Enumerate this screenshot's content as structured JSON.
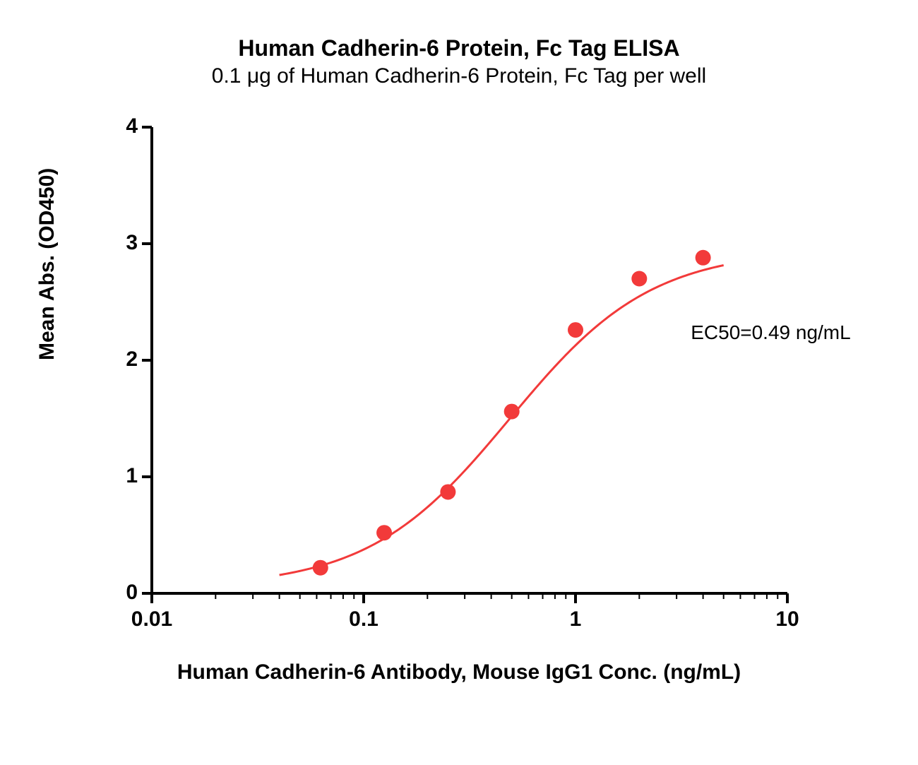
{
  "chart": {
    "type": "scatter-line-logx",
    "title_main": "Human Cadherin-6 Protein, Fc Tag ELISA",
    "title_sub": "0.1 μg of Human Cadherin-6 Protein, Fc Tag per well",
    "title_fontsize_main": 32,
    "title_fontsize_sub": 30,
    "xlabel": "Human Cadherin-6 Antibody, Mouse IgG1 Conc. (ng/mL)",
    "ylabel": "Mean Abs. (OD450)",
    "label_fontsize": 30,
    "annotation": "EC50=0.49 ng/mL",
    "annotation_pos_x": 3.5,
    "annotation_pos_y": 2.25,
    "annotation_fontsize": 28,
    "x_scale": "log",
    "y_scale": "linear",
    "xlim": [
      0.01,
      10
    ],
    "ylim": [
      0,
      4
    ],
    "x_ticks": [
      0.01,
      0.1,
      1,
      10
    ],
    "x_tick_labels": [
      "0.01",
      "0.1",
      "1",
      "10"
    ],
    "y_ticks": [
      0,
      1,
      2,
      3,
      4
    ],
    "y_tick_labels": [
      "0",
      "1",
      "2",
      "3",
      "4"
    ],
    "tick_fontsize": 30,
    "axis_line_width": 4,
    "tick_length_major": 14,
    "tick_length_minor": 8,
    "series": {
      "points_x": [
        0.0625,
        0.125,
        0.25,
        0.5,
        1,
        2,
        4
      ],
      "points_y": [
        0.22,
        0.52,
        0.87,
        1.56,
        2.26,
        2.7,
        2.88
      ],
      "marker_color": "#f23a3a",
      "marker_size": 11,
      "line_color": "#f23a3a",
      "line_width": 3,
      "curve_bottom": 0.05,
      "curve_top": 2.95,
      "curve_ec50": 0.49,
      "curve_hill": 1.3
    },
    "background_color": "#ffffff",
    "axis_color": "#000000"
  }
}
